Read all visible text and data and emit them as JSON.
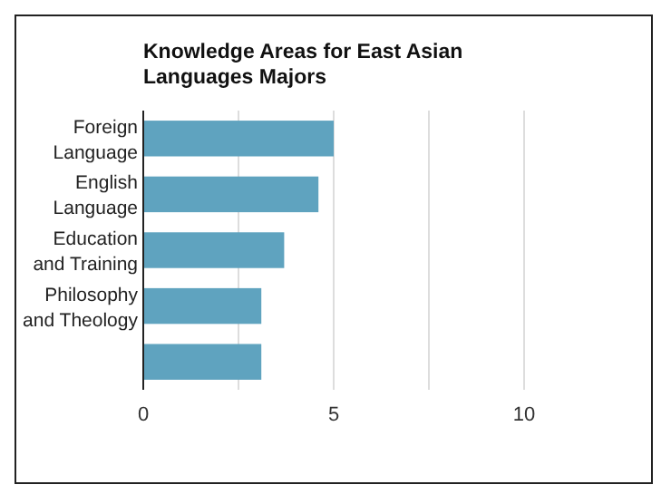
{
  "chart_data": {
    "type": "bar",
    "orientation": "horizontal",
    "title": "Knowledge Areas for East Asian Languages Majors",
    "categories": [
      "Foreign Language",
      "English Language",
      "Education and Training",
      "Philosophy and Theology",
      null
    ],
    "values": [
      5.0,
      4.6,
      3.7,
      3.1,
      3.1
    ],
    "color": "#5fa3bf",
    "xlim": [
      0,
      10
    ],
    "xticks": [
      0,
      {
        "value": 2.5,
        "label": null
      },
      5,
      {
        "value": 7.5,
        "label": null
      },
      10
    ],
    "grid": "x"
  }
}
